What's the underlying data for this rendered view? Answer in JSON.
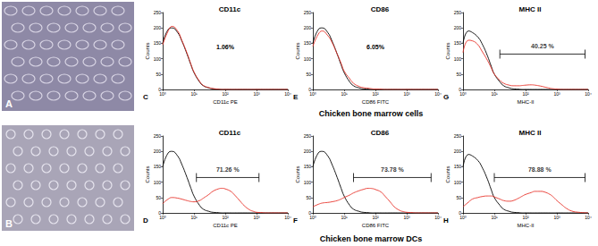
{
  "figure": {
    "images": [
      {
        "label": "A"
      },
      {
        "label": "B"
      }
    ],
    "row_labels": [
      "Chicken bone marrow cells",
      "Chicken bone marrow DCs"
    ]
  },
  "chart_data": [
    {
      "type": "line",
      "panel": "C",
      "title": "CD11c",
      "xlabel": "CD11c PE",
      "ylabel": "Counts",
      "log": "x",
      "xlim": [
        1,
        10000
      ],
      "xticks": [
        {
          "value": 1,
          "label": "10⁰"
        },
        {
          "value": 10,
          "label": "10¹"
        },
        {
          "value": 100,
          "label": "10²"
        },
        {
          "value": 1000,
          "label": "10³"
        },
        {
          "value": 10000,
          "label": "10⁴"
        }
      ],
      "ylim": [
        0,
        250
      ],
      "yticks": [
        0,
        50,
        100,
        150,
        200,
        250
      ],
      "annotation": "1.06%",
      "x": [
        1,
        1.5,
        2,
        3,
        4,
        6,
        8,
        10,
        15,
        20,
        30,
        40,
        60,
        80,
        100,
        150,
        200,
        300,
        400,
        600,
        800,
        1000,
        1500,
        2000,
        3000,
        5000,
        10000
      ],
      "series": [
        {
          "color": "#000000",
          "values": [
            150,
            195,
            200,
            185,
            160,
            115,
            80,
            55,
            25,
            12,
            5,
            2,
            1,
            0,
            0,
            0,
            0,
            0,
            0,
            0,
            0,
            0,
            0,
            0,
            0,
            0,
            0
          ]
        },
        {
          "color": "#e8332a",
          "values": [
            145,
            190,
            205,
            190,
            162,
            118,
            82,
            57,
            27,
            13,
            6,
            3,
            1,
            0,
            0,
            0,
            0,
            0,
            0,
            0,
            0,
            0,
            0,
            0,
            0,
            0,
            0
          ]
        }
      ]
    },
    {
      "type": "line",
      "panel": "E",
      "title": "CD86",
      "xlabel": "CD86 FITC",
      "ylabel": "Counts",
      "log": "x",
      "xlim": [
        1,
        10000
      ],
      "xticks": [
        {
          "value": 1,
          "label": "10⁰"
        },
        {
          "value": 10,
          "label": "10¹"
        },
        {
          "value": 100,
          "label": "10²"
        },
        {
          "value": 1000,
          "label": "10³"
        },
        {
          "value": 10000,
          "label": "10⁴"
        }
      ],
      "ylim": [
        0,
        250
      ],
      "yticks": [
        0,
        50,
        100,
        150,
        200,
        250
      ],
      "annotation": "6.05%",
      "x": [
        1,
        1.5,
        2,
        3,
        4,
        6,
        8,
        10,
        15,
        20,
        30,
        40,
        60,
        80,
        100,
        150,
        200,
        300,
        400,
        600,
        800,
        1000,
        1500,
        2000,
        3000,
        5000,
        10000
      ],
      "series": [
        {
          "color": "#000000",
          "values": [
            150,
            195,
            200,
            185,
            160,
            115,
            80,
            55,
            25,
            12,
            5,
            2,
            1,
            0,
            0,
            0,
            0,
            0,
            0,
            0,
            0,
            0,
            0,
            0,
            0,
            0,
            0
          ]
        },
        {
          "color": "#e8332a",
          "values": [
            140,
            180,
            190,
            175,
            155,
            115,
            85,
            60,
            35,
            20,
            10,
            6,
            4,
            2,
            1,
            1,
            0,
            0,
            0,
            0,
            0,
            0,
            0,
            0,
            0,
            0,
            0
          ]
        }
      ]
    },
    {
      "type": "line",
      "panel": "G",
      "title": "MHC II",
      "xlabel": "MHC-II",
      "ylabel": "Counts",
      "log": "x",
      "xlim": [
        1,
        10000
      ],
      "xticks": [
        {
          "value": 1,
          "label": "10⁰"
        },
        {
          "value": 10,
          "label": "10¹"
        },
        {
          "value": 100,
          "label": "10²"
        },
        {
          "value": 1000,
          "label": "10³"
        },
        {
          "value": 10000,
          "label": "10⁴"
        }
      ],
      "ylim": [
        0,
        250
      ],
      "yticks": [
        0,
        50,
        100,
        150,
        200,
        250
      ],
      "annotation": "40.25 %",
      "gate": [
        15,
        8000
      ],
      "x": [
        1,
        1.5,
        2,
        3,
        4,
        6,
        8,
        10,
        15,
        20,
        30,
        40,
        60,
        80,
        100,
        150,
        200,
        300,
        400,
        600,
        800,
        1000,
        1500,
        2000,
        3000,
        5000,
        10000
      ],
      "series": [
        {
          "color": "#000000",
          "values": [
            150,
            190,
            185,
            170,
            150,
            110,
            75,
            50,
            25,
            12,
            5,
            2,
            1,
            0,
            0,
            0,
            0,
            0,
            0,
            0,
            0,
            0,
            0,
            0,
            0,
            0,
            0
          ]
        },
        {
          "color": "#e8332a",
          "values": [
            120,
            160,
            158,
            145,
            125,
            95,
            70,
            50,
            30,
            20,
            14,
            12,
            12,
            13,
            14,
            15,
            14,
            11,
            8,
            4,
            2,
            1,
            0,
            0,
            0,
            0,
            0
          ]
        }
      ]
    },
    {
      "type": "line",
      "panel": "D",
      "title": "CD11c",
      "xlabel": "CD11c PE",
      "ylabel": "Counts",
      "log": "x",
      "xlim": [
        1,
        10000
      ],
      "xticks": [
        {
          "value": 1,
          "label": "10⁰"
        },
        {
          "value": 10,
          "label": "10¹"
        },
        {
          "value": 100,
          "label": "10²"
        },
        {
          "value": 1000,
          "label": "10³"
        },
        {
          "value": 10000,
          "label": "10⁴"
        }
      ],
      "ylim": [
        0,
        250
      ],
      "yticks": [
        0,
        50,
        100,
        150,
        200,
        250
      ],
      "annotation": "71.26 %",
      "gate": [
        12,
        1200
      ],
      "x": [
        1,
        1.5,
        2,
        3,
        4,
        6,
        8,
        10,
        15,
        20,
        30,
        40,
        60,
        80,
        100,
        150,
        200,
        300,
        400,
        600,
        800,
        1000,
        1500,
        2000,
        3000,
        5000,
        10000
      ],
      "series": [
        {
          "color": "#000000",
          "values": [
            150,
            195,
            200,
            185,
            160,
            115,
            80,
            55,
            25,
            12,
            5,
            2,
            1,
            0,
            0,
            0,
            0,
            0,
            0,
            0,
            0,
            0,
            0,
            0,
            0,
            0,
            0
          ]
        },
        {
          "color": "#e8332a",
          "values": [
            30,
            45,
            50,
            48,
            45,
            40,
            37,
            36,
            40,
            48,
            60,
            70,
            78,
            80,
            78,
            70,
            58,
            38,
            24,
            10,
            5,
            2,
            1,
            0,
            0,
            0,
            0
          ]
        }
      ]
    },
    {
      "type": "line",
      "panel": "F",
      "title": "CD86",
      "xlabel": "CD86 FITC",
      "ylabel": "Counts",
      "log": "x",
      "xlim": [
        1,
        10000
      ],
      "xticks": [
        {
          "value": 1,
          "label": "10⁰"
        },
        {
          "value": 10,
          "label": "10¹"
        },
        {
          "value": 100,
          "label": "10²"
        },
        {
          "value": 1000,
          "label": "10³"
        },
        {
          "value": 10000,
          "label": "10⁴"
        }
      ],
      "ylim": [
        0,
        250
      ],
      "yticks": [
        0,
        50,
        100,
        150,
        200,
        250
      ],
      "annotation": "73.78 %",
      "gate": [
        20,
        6000
      ],
      "x": [
        1,
        1.5,
        2,
        3,
        4,
        6,
        8,
        10,
        15,
        20,
        30,
        40,
        60,
        80,
        100,
        150,
        200,
        300,
        400,
        600,
        800,
        1000,
        1500,
        2000,
        3000,
        5000,
        10000
      ],
      "series": [
        {
          "color": "#000000",
          "values": [
            150,
            195,
            200,
            185,
            160,
            115,
            80,
            55,
            25,
            12,
            5,
            2,
            1,
            0,
            0,
            0,
            0,
            0,
            0,
            0,
            0,
            0,
            0,
            0,
            0,
            0,
            0
          ]
        },
        {
          "color": "#e8332a",
          "values": [
            20,
            28,
            32,
            34,
            36,
            40,
            45,
            50,
            58,
            65,
            72,
            76,
            80,
            79,
            76,
            68,
            55,
            35,
            20,
            8,
            4,
            2,
            1,
            0,
            0,
            0,
            0
          ]
        }
      ]
    },
    {
      "type": "line",
      "panel": "H",
      "title": "MHC II",
      "xlabel": "MHC-II",
      "ylabel": "Counts",
      "log": "x",
      "xlim": [
        1,
        10000
      ],
      "xticks": [
        {
          "value": 1,
          "label": "10⁰"
        },
        {
          "value": 10,
          "label": "10¹"
        },
        {
          "value": 100,
          "label": "10²"
        },
        {
          "value": 1000,
          "label": "10³"
        },
        {
          "value": 10000,
          "label": "10⁴"
        }
      ],
      "ylim": [
        0,
        250
      ],
      "yticks": [
        0,
        50,
        100,
        150,
        200,
        250
      ],
      "annotation": "78.88 %",
      "gate": [
        10,
        8000
      ],
      "x": [
        1,
        1.5,
        2,
        3,
        4,
        6,
        8,
        10,
        15,
        20,
        30,
        40,
        60,
        80,
        100,
        150,
        200,
        300,
        400,
        600,
        800,
        1000,
        1500,
        2000,
        3000,
        5000,
        10000
      ],
      "series": [
        {
          "color": "#000000",
          "values": [
            150,
            190,
            185,
            170,
            150,
            110,
            75,
            50,
            25,
            12,
            5,
            2,
            1,
            0,
            0,
            0,
            0,
            0,
            0,
            0,
            0,
            0,
            0,
            0,
            0,
            0,
            0
          ]
        },
        {
          "color": "#e8332a",
          "values": [
            20,
            35,
            45,
            50,
            53,
            55,
            55,
            52,
            45,
            40,
            38,
            40,
            48,
            55,
            60,
            66,
            70,
            70,
            68,
            60,
            50,
            40,
            25,
            15,
            6,
            2,
            0
          ]
        }
      ]
    }
  ]
}
